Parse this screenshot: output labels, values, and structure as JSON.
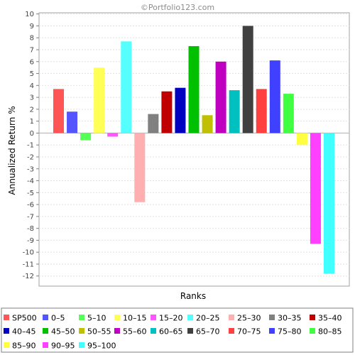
{
  "watermark": "©Portfolio123.com",
  "chart_data": {
    "type": "bar",
    "title": "",
    "xlabel": "Ranks",
    "ylabel": "Annualized Return %",
    "ylim": [
      -12.85,
      10.1
    ],
    "yticks": [
      10,
      9,
      8,
      7,
      6,
      5,
      4,
      3,
      2,
      1,
      0,
      -1,
      -2,
      -3,
      -4,
      -5,
      -6,
      -7,
      -8,
      -9,
      -10,
      -11,
      -12
    ],
    "grid": true,
    "legend_position": "bottom",
    "categories": [
      "SP500",
      "0-5",
      "5-10",
      "10-15",
      "15-20",
      "20-25",
      "25-30",
      "30-35",
      "35-40",
      "40-45",
      "45-50",
      "50-55",
      "55-60",
      "60-65",
      "65-70",
      "70-75",
      "75-80",
      "80-85",
      "85-90",
      "90-95",
      "95-100"
    ],
    "values": [
      3.7,
      1.8,
      -0.6,
      5.5,
      -0.3,
      7.7,
      -5.8,
      1.6,
      3.5,
      3.8,
      7.3,
      1.5,
      6.0,
      3.6,
      9.0,
      3.7,
      6.1,
      3.3,
      -1.0,
      -9.3,
      -11.8
    ],
    "colors": [
      "#ff5555",
      "#5555ff",
      "#55ff55",
      "#ffff55",
      "#ff55ff",
      "#55ffff",
      "#ffafaf",
      "#808080",
      "#c00000",
      "#0000c0",
      "#00c000",
      "#c0c000",
      "#c000c0",
      "#00c0c0",
      "#404040",
      "#ff4040",
      "#4040ff",
      "#40ff40",
      "#ffff40",
      "#ff40ff",
      "#40ffff"
    ],
    "legend_labels": [
      "SP500",
      "0–5",
      "5–10",
      "10–15",
      "15–20",
      "20–25",
      "25–30",
      "30–35",
      "35–40",
      "40–45",
      "45–50",
      "50–55",
      "55–60",
      "60–65",
      "65–70",
      "70–75",
      "75–80",
      "80–85",
      "85–90",
      "90–95",
      "95–100"
    ]
  }
}
